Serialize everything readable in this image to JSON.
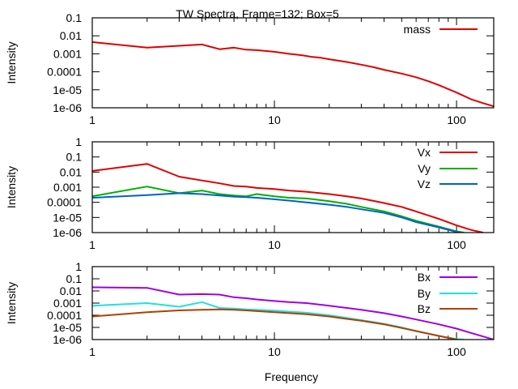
{
  "title": "TW Spectra, Frame=132; Box=5",
  "xlabel": "Frequency",
  "chart_data": [
    {
      "type": "line",
      "title": "TW Spectra, Frame=132; Box=5",
      "xlabel": "",
      "ylabel": "Intensity",
      "xscale": "log",
      "yscale": "log",
      "xlim": [
        1,
        160
      ],
      "ylim": [
        1e-06,
        0.1
      ],
      "xtick_labels": [
        "1",
        "10",
        "100"
      ],
      "ytick_labels": [
        "0.1",
        "0.01",
        "0.001",
        "0.0001",
        "1e-05",
        "1e-06"
      ],
      "yticks": [
        0.1,
        0.01,
        0.001,
        0.0001,
        1e-05,
        1e-06
      ],
      "legend": "top-right",
      "series": [
        {
          "name": "mass",
          "color": "#e00000",
          "x": [
            1,
            2,
            3,
            4,
            5,
            6,
            7,
            8,
            10,
            12,
            14,
            16,
            18,
            20,
            25,
            30,
            35,
            40,
            50,
            60,
            70,
            80,
            100,
            120,
            140,
            160
          ],
          "y": [
            0.0045,
            0.0022,
            0.0028,
            0.0033,
            0.0018,
            0.0022,
            0.0017,
            0.0016,
            0.0013,
            0.001,
            0.00085,
            0.00068,
            0.0006,
            0.0005,
            0.00035,
            0.00025,
            0.00018,
            0.00013,
            8e-05,
            5e-05,
            3e-05,
            1.8e-05,
            7e-06,
            3e-06,
            1.8e-06,
            1.2e-06
          ]
        }
      ]
    },
    {
      "type": "line",
      "xlabel": "",
      "ylabel": "Intensity",
      "xscale": "log",
      "yscale": "log",
      "xlim": [
        1,
        160
      ],
      "ylim": [
        1e-06,
        1
      ],
      "xtick_labels": [
        "1",
        "10",
        "100"
      ],
      "ytick_labels": [
        "1",
        "0.1",
        "0.01",
        "0.001",
        "0.0001",
        "1e-05",
        "1e-06"
      ],
      "yticks": [
        1,
        0.1,
        0.01,
        0.001,
        0.0001,
        1e-05,
        1e-06
      ],
      "legend": "top-right",
      "series": [
        {
          "name": "Vx",
          "color": "#e00000",
          "x": [
            1,
            2,
            3,
            4,
            5,
            6,
            7,
            8,
            10,
            12,
            15,
            20,
            25,
            30,
            40,
            50,
            60,
            80,
            100,
            120,
            140
          ],
          "y": [
            0.012,
            0.035,
            0.005,
            0.0028,
            0.0018,
            0.0012,
            0.0011,
            0.0009,
            0.00075,
            0.0006,
            0.0005,
            0.00035,
            0.00025,
            0.00018,
            9e-05,
            5e-05,
            2.5e-05,
            8e-06,
            3e-06,
            1.5e-06,
            1e-06
          ]
        },
        {
          "name": "Vy",
          "color": "#00b000",
          "x": [
            1,
            2,
            3,
            4,
            5,
            6,
            7,
            8,
            10,
            12,
            15,
            20,
            25,
            30,
            40,
            50,
            60,
            80,
            100,
            110
          ],
          "y": [
            0.00025,
            0.0011,
            0.0004,
            0.0006,
            0.00035,
            0.00028,
            0.00025,
            0.00035,
            0.00025,
            0.0002,
            0.00018,
            0.00012,
            8e-05,
            5e-05,
            2.5e-05,
            1.2e-05,
            6e-06,
            2.5e-06,
            1.2e-06,
            1e-06
          ]
        },
        {
          "name": "Vz",
          "color": "#0060d0",
          "x": [
            1,
            2,
            3,
            4,
            5,
            6,
            7,
            8,
            10,
            12,
            15,
            20,
            25,
            30,
            40,
            50,
            60,
            80,
            100,
            105
          ],
          "y": [
            0.0002,
            0.0003,
            0.0004,
            0.00035,
            0.00028,
            0.00024,
            0.00022,
            0.0002,
            0.00016,
            0.00013,
            0.0001,
            7e-05,
            5e-05,
            3.5e-05,
            2e-05,
            1e-05,
            5e-06,
            2.2e-06,
            1.1e-06,
            1e-06
          ]
        }
      ]
    },
    {
      "type": "line",
      "xlabel": "Frequency",
      "ylabel": "Intensity",
      "xscale": "log",
      "yscale": "log",
      "xlim": [
        1,
        160
      ],
      "ylim": [
        1e-06,
        1
      ],
      "xtick_labels": [
        "1",
        "10",
        "100"
      ],
      "ytick_labels": [
        "1",
        "0.1",
        "0.01",
        "0.001",
        "0.0001",
        "1e-05",
        "1e-06"
      ],
      "yticks": [
        1,
        0.1,
        0.01,
        0.001,
        0.0001,
        1e-05,
        1e-06
      ],
      "legend": "top-right",
      "series": [
        {
          "name": "Bx",
          "color": "#a000e0",
          "x": [
            1,
            2,
            3,
            4,
            5,
            6,
            7,
            8,
            10,
            12,
            15,
            20,
            25,
            30,
            40,
            50,
            60,
            80,
            100,
            120,
            140,
            160
          ],
          "y": [
            0.02,
            0.018,
            0.005,
            0.0055,
            0.005,
            0.003,
            0.0025,
            0.002,
            0.0015,
            0.0012,
            0.001,
            0.0006,
            0.0004,
            0.00028,
            0.00015,
            8e-05,
            4.5e-05,
            1.8e-05,
            8e-06,
            3.5e-06,
            1.8e-06,
            1e-06
          ]
        },
        {
          "name": "By",
          "color": "#20e0e0",
          "x": [
            1,
            2,
            3,
            4,
            5,
            6,
            7,
            8,
            10,
            12,
            15,
            20,
            25,
            30,
            40,
            50,
            60,
            80,
            100,
            110
          ],
          "y": [
            0.0006,
            0.001,
            0.0005,
            0.0012,
            0.0004,
            0.00035,
            0.0003,
            0.00028,
            0.00024,
            0.0002,
            0.00016,
            0.0001,
            6e-05,
            4e-05,
            2e-05,
            1e-05,
            5e-06,
            2e-06,
            1.1e-06,
            1e-06
          ]
        },
        {
          "name": "Bz",
          "color": "#b04000",
          "x": [
            1,
            2,
            3,
            4,
            5,
            6,
            7,
            8,
            10,
            12,
            15,
            20,
            25,
            30,
            40,
            50,
            60,
            80,
            100,
            105
          ],
          "y": [
            8e-05,
            0.00018,
            0.00025,
            0.00028,
            0.0003,
            0.00028,
            0.00025,
            0.00022,
            0.00018,
            0.00015,
            0.00012,
            8e-05,
            5e-05,
            3.5e-05,
            1.8e-05,
            9e-06,
            5e-06,
            2e-06,
            1e-06,
            9e-07
          ]
        }
      ]
    }
  ]
}
